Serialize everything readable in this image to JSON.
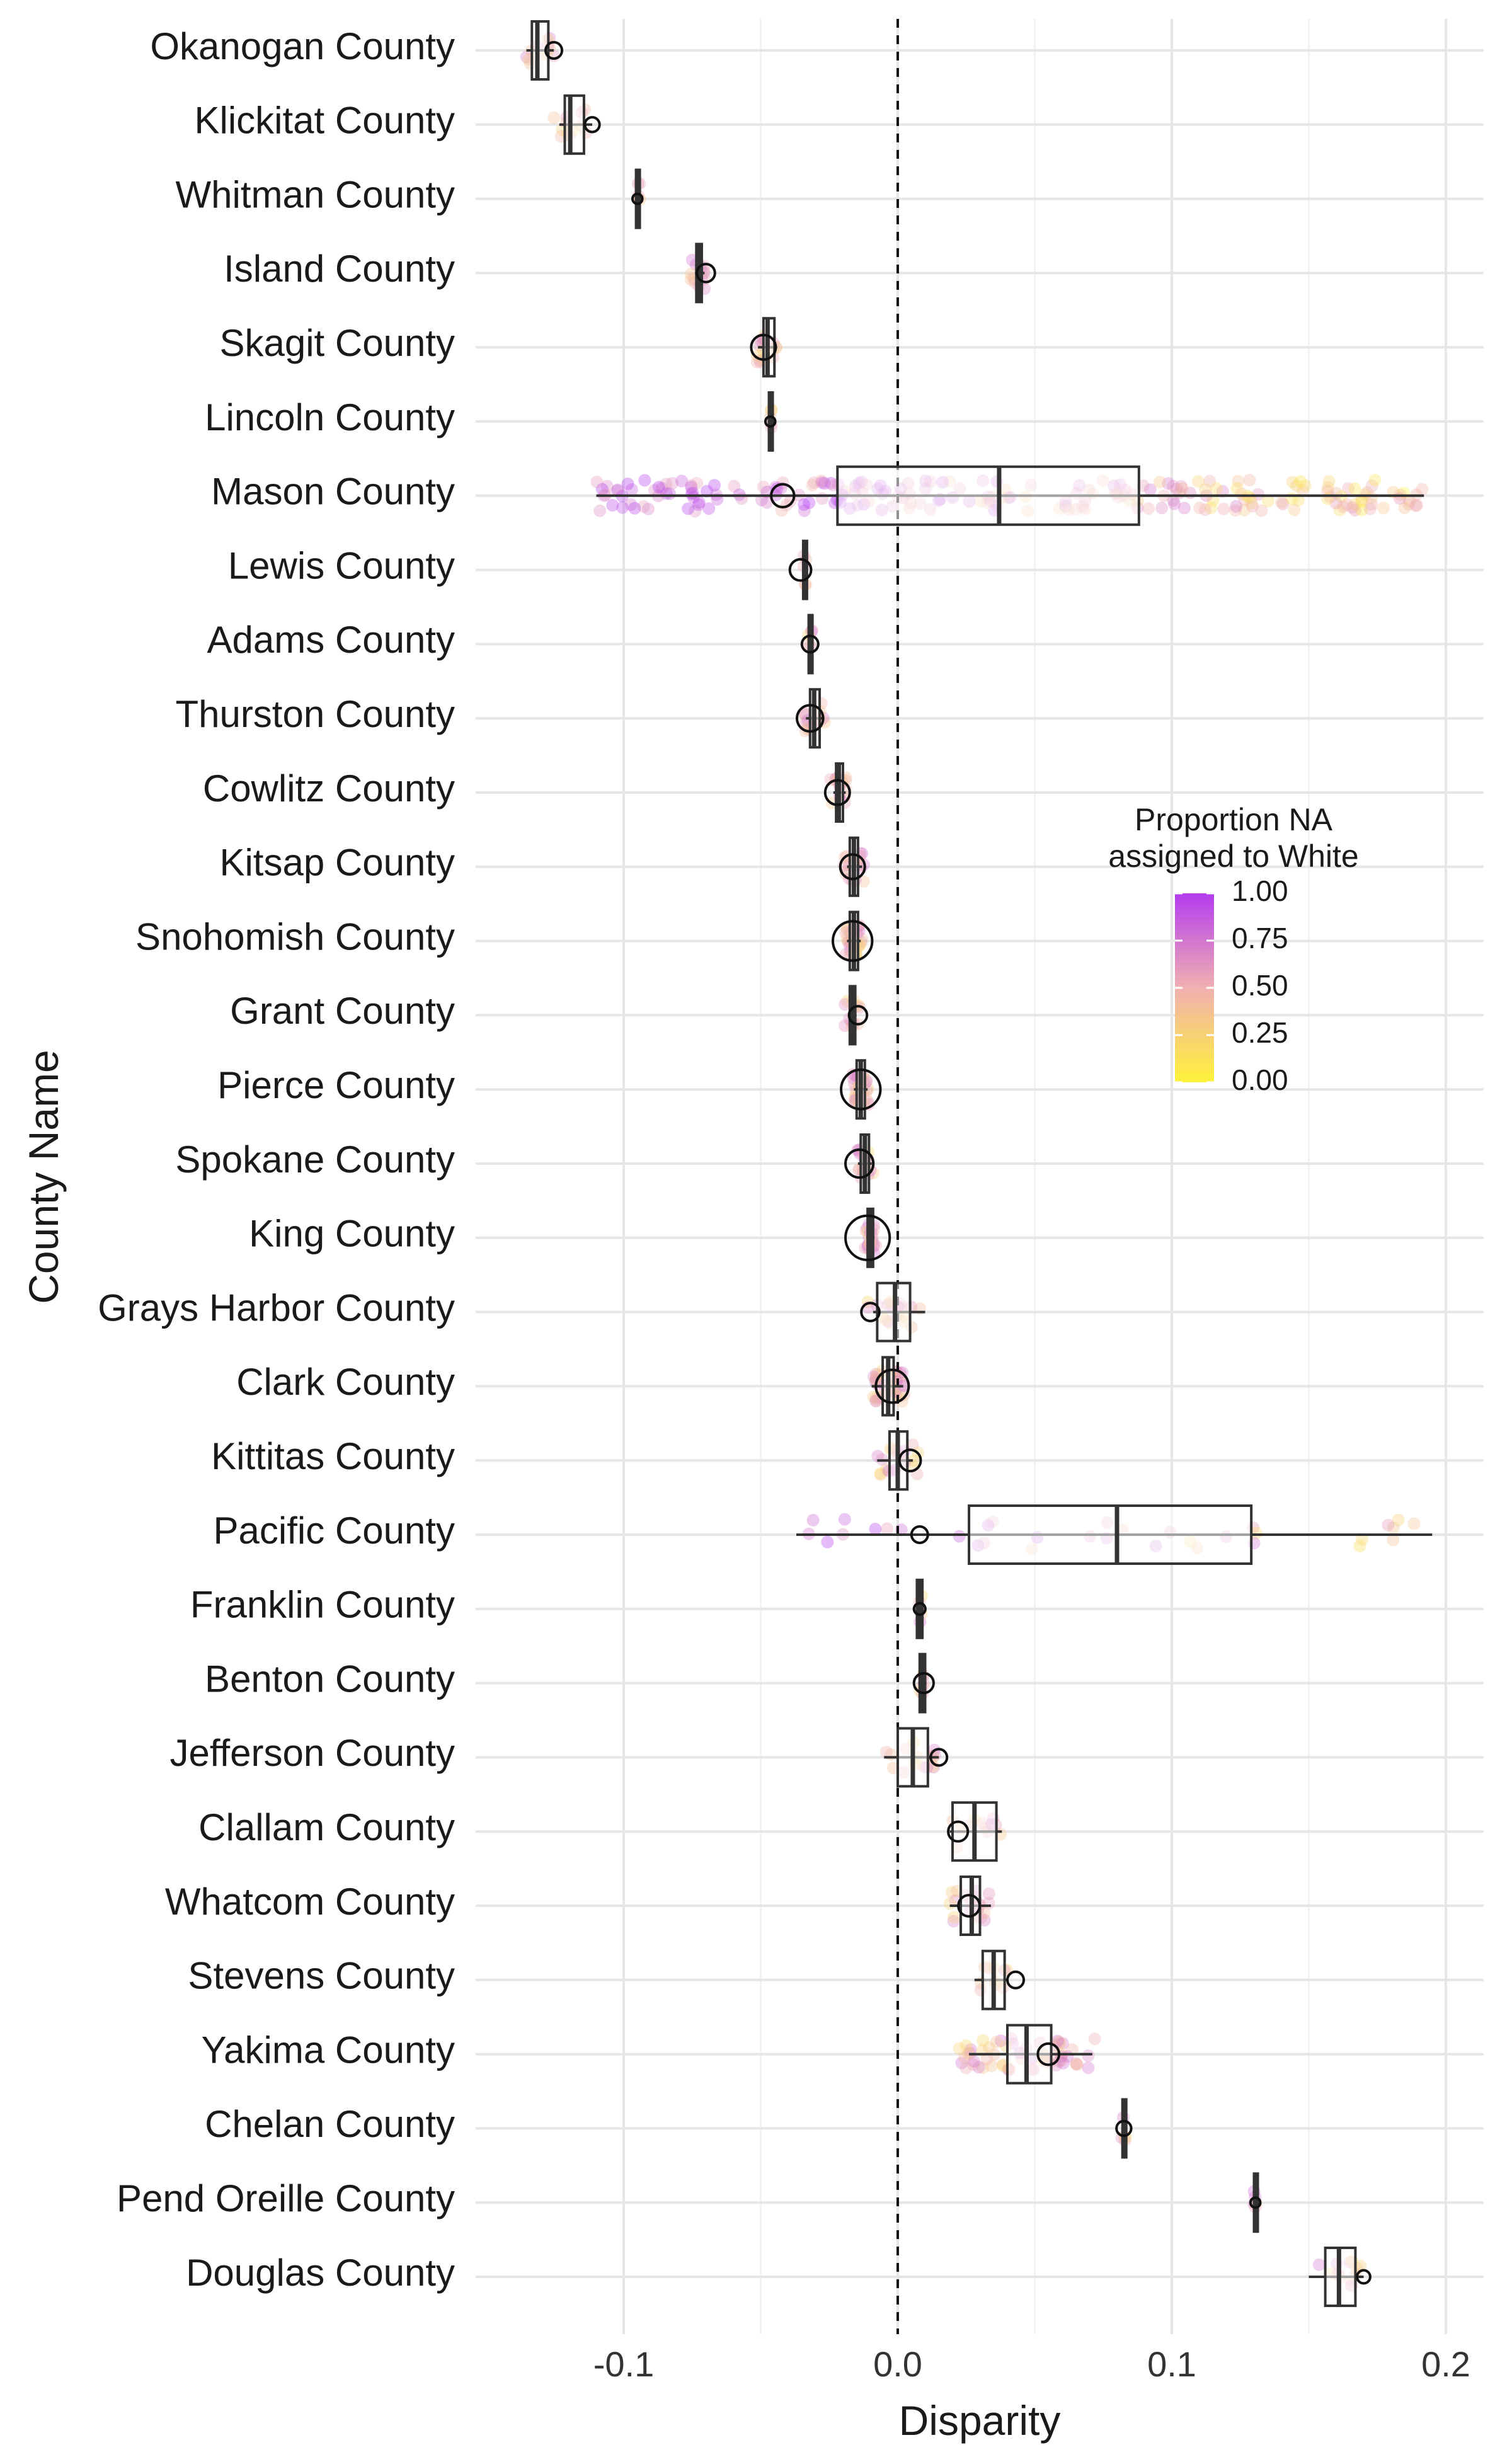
{
  "chart_data": {
    "type": "boxplot",
    "xlabel": "Disparity",
    "ylabel": "County Name",
    "xlim": [
      -0.135,
      0.21
    ],
    "x_ticks": [
      {
        "value": -0.1,
        "label": "-0.1"
      },
      {
        "value": 0.0,
        "label": "0.0"
      },
      {
        "value": 0.1,
        "label": "0.1"
      },
      {
        "value": 0.2,
        "label": "0.2"
      }
    ],
    "reference_line": {
      "x": 0.0,
      "style": "dashed"
    },
    "grid": true,
    "legend": {
      "title_line1": "Proportion NA",
      "title_line2": "assigned to White",
      "placement": "right",
      "scale": [
        {
          "value": 1.0,
          "label": "1.00"
        },
        {
          "value": 0.75,
          "label": "0.75"
        },
        {
          "value": 0.5,
          "label": "0.50"
        },
        {
          "value": 0.25,
          "label": "0.25"
        },
        {
          "value": 0.0,
          "label": "0.00"
        }
      ],
      "colors": {
        "low": "#fff23a",
        "mid": "#f0b0b0",
        "high": "#b43cf0"
      }
    },
    "counties": [
      {
        "name": "Okanogan County",
        "q1": -0.1335,
        "median": -0.1315,
        "q3": -0.1275,
        "wlow": -0.1355,
        "whigh": -0.1255,
        "marker": -0.1255,
        "msize": 1.0,
        "spread": 0.006,
        "npts": 12
      },
      {
        "name": "Klickitat County",
        "q1": -0.1215,
        "median": -0.1195,
        "q3": -0.1145,
        "wlow": -0.1235,
        "whigh": -0.1115,
        "marker": -0.1115,
        "msize": 0.9,
        "spread": 0.006,
        "npts": 12
      },
      {
        "name": "Whitman County",
        "q1": -0.0955,
        "median": -0.095,
        "q3": -0.0945,
        "wlow": -0.0958,
        "whigh": -0.0942,
        "marker": -0.095,
        "msize": 0.6,
        "spread": 0.001,
        "npts": 6
      },
      {
        "name": "Island County",
        "q1": -0.0735,
        "median": -0.0725,
        "q3": -0.0715,
        "wlow": -0.074,
        "whigh": -0.0705,
        "marker": -0.07,
        "msize": 1.1,
        "spread": 0.003,
        "npts": 14
      },
      {
        "name": "Skagit County",
        "q1": -0.049,
        "median": -0.0475,
        "q3": -0.045,
        "wlow": -0.051,
        "whigh": -0.044,
        "marker": -0.049,
        "msize": 1.5,
        "spread": 0.005,
        "npts": 18
      },
      {
        "name": "Lincoln County",
        "q1": -0.047,
        "median": -0.0465,
        "q3": -0.046,
        "wlow": -0.0472,
        "whigh": -0.0458,
        "marker": -0.0465,
        "msize": 0.6,
        "spread": 0.0008,
        "npts": 5
      },
      {
        "name": "Mason County",
        "q1": -0.022,
        "median": 0.037,
        "q3": 0.088,
        "wlow": -0.11,
        "whigh": 0.192,
        "marker": -0.042,
        "msize": 1.4,
        "spread": 0.15,
        "npts": 240
      },
      {
        "name": "Lewis County",
        "q1": -0.0345,
        "median": -0.034,
        "q3": -0.0335,
        "wlow": -0.0348,
        "whigh": -0.0332,
        "marker": -0.0355,
        "msize": 1.3,
        "spread": 0.0008,
        "npts": 5
      },
      {
        "name": "Adams County",
        "q1": -0.0325,
        "median": -0.032,
        "q3": -0.0315,
        "wlow": -0.0328,
        "whigh": -0.0312,
        "marker": -0.032,
        "msize": 1.0,
        "spread": 0.0008,
        "npts": 5
      },
      {
        "name": "Thurston County",
        "q1": -0.032,
        "median": -0.0305,
        "q3": -0.0285,
        "wlow": -0.0335,
        "whigh": -0.027,
        "marker": -0.032,
        "msize": 1.6,
        "spread": 0.004,
        "npts": 22
      },
      {
        "name": "Cowlitz County",
        "q1": -0.0225,
        "median": -0.0215,
        "q3": -0.02,
        "wlow": -0.0235,
        "whigh": -0.019,
        "marker": -0.022,
        "msize": 1.5,
        "spread": 0.003,
        "npts": 16
      },
      {
        "name": "Kitsap County",
        "q1": -0.0175,
        "median": -0.016,
        "q3": -0.0145,
        "wlow": -0.0185,
        "whigh": -0.013,
        "marker": -0.0165,
        "msize": 1.5,
        "spread": 0.004,
        "npts": 20
      },
      {
        "name": "Snohomish County",
        "q1": -0.0175,
        "median": -0.016,
        "q3": -0.0145,
        "wlow": -0.0185,
        "whigh": -0.0135,
        "marker": -0.0165,
        "msize": 2.4,
        "spread": 0.003,
        "npts": 28
      },
      {
        "name": "Grant County",
        "q1": -0.0175,
        "median": -0.0165,
        "q3": -0.0155,
        "wlow": -0.018,
        "whigh": -0.015,
        "marker": -0.0145,
        "msize": 1.1,
        "spread": 0.003,
        "npts": 12
      },
      {
        "name": "Pierce County",
        "q1": -0.015,
        "median": -0.0135,
        "q3": -0.012,
        "wlow": -0.016,
        "whigh": -0.011,
        "marker": -0.0135,
        "msize": 2.4,
        "spread": 0.003,
        "npts": 30
      },
      {
        "name": "Spokane County",
        "q1": -0.0135,
        "median": -0.012,
        "q3": -0.0105,
        "wlow": -0.0145,
        "whigh": -0.0095,
        "marker": -0.014,
        "msize": 1.7,
        "spread": 0.003,
        "npts": 18
      },
      {
        "name": "King County",
        "q1": -0.011,
        "median": -0.01,
        "q3": -0.009,
        "wlow": -0.0115,
        "whigh": -0.0085,
        "marker": -0.011,
        "msize": 2.7,
        "spread": 0.002,
        "npts": 22
      },
      {
        "name": "Grays Harbor County",
        "q1": -0.0075,
        "median": -0.001,
        "q3": 0.0045,
        "wlow": -0.009,
        "whigh": 0.01,
        "marker": -0.01,
        "msize": 1.1,
        "spread": 0.01,
        "npts": 20
      },
      {
        "name": "Clark County",
        "q1": -0.0055,
        "median": -0.0035,
        "q3": -0.0015,
        "wlow": -0.0095,
        "whigh": 0.002,
        "marker": -0.002,
        "msize": 2.0,
        "spread": 0.006,
        "npts": 40
      },
      {
        "name": "Kittitas County",
        "q1": -0.003,
        "median": 0.0,
        "q3": 0.0035,
        "wlow": -0.0075,
        "whigh": 0.0055,
        "marker": 0.0045,
        "msize": 1.3,
        "spread": 0.008,
        "npts": 22
      },
      {
        "name": "Pacific County",
        "q1": 0.026,
        "median": 0.08,
        "q3": 0.129,
        "wlow": -0.037,
        "whigh": 0.195,
        "marker": 0.008,
        "msize": 1.0,
        "spread": 0.12,
        "npts": 34
      },
      {
        "name": "Franklin County",
        "q1": 0.007,
        "median": 0.008,
        "q3": 0.009,
        "wlow": 0.0065,
        "whigh": 0.0095,
        "marker": 0.008,
        "msize": 0.7,
        "spread": 0.001,
        "npts": 5
      },
      {
        "name": "Benton County",
        "q1": 0.008,
        "median": 0.009,
        "q3": 0.01,
        "wlow": 0.0075,
        "whigh": 0.0105,
        "marker": 0.0095,
        "msize": 1.2,
        "spread": 0.001,
        "npts": 6
      },
      {
        "name": "Jefferson County",
        "q1": 0.0,
        "median": 0.0055,
        "q3": 0.011,
        "wlow": -0.005,
        "whigh": 0.015,
        "marker": 0.015,
        "msize": 1.0,
        "spread": 0.01,
        "npts": 16
      },
      {
        "name": "Clallam County",
        "q1": 0.02,
        "median": 0.028,
        "q3": 0.036,
        "wlow": 0.019,
        "whigh": 0.038,
        "marker": 0.022,
        "msize": 1.2,
        "spread": 0.01,
        "npts": 12
      },
      {
        "name": "Whatcom County",
        "q1": 0.023,
        "median": 0.027,
        "q3": 0.03,
        "wlow": 0.019,
        "whigh": 0.034,
        "marker": 0.026,
        "msize": 1.3,
        "spread": 0.008,
        "npts": 20
      },
      {
        "name": "Stevens County",
        "q1": 0.031,
        "median": 0.035,
        "q3": 0.039,
        "wlow": 0.028,
        "whigh": 0.04,
        "marker": 0.043,
        "msize": 1.0,
        "spread": 0.006,
        "npts": 12
      },
      {
        "name": "Yakima County",
        "q1": 0.04,
        "median": 0.047,
        "q3": 0.056,
        "wlow": 0.026,
        "whigh": 0.071,
        "marker": 0.055,
        "msize": 1.3,
        "spread": 0.025,
        "npts": 60
      },
      {
        "name": "Chelan County",
        "q1": 0.082,
        "median": 0.0825,
        "q3": 0.083,
        "wlow": 0.0818,
        "whigh": 0.0832,
        "marker": 0.0825,
        "msize": 0.9,
        "spread": 0.0008,
        "npts": 5
      },
      {
        "name": "Pend Oreille County",
        "q1": 0.13,
        "median": 0.1305,
        "q3": 0.131,
        "wlow": 0.1298,
        "whigh": 0.1312,
        "marker": 0.1305,
        "msize": 0.6,
        "spread": 0.0008,
        "npts": 5
      },
      {
        "name": "Douglas County",
        "q1": 0.156,
        "median": 0.161,
        "q3": 0.167,
        "wlow": 0.15,
        "whigh": 0.17,
        "marker": 0.17,
        "msize": 0.8,
        "spread": 0.008,
        "npts": 12
      }
    ]
  }
}
